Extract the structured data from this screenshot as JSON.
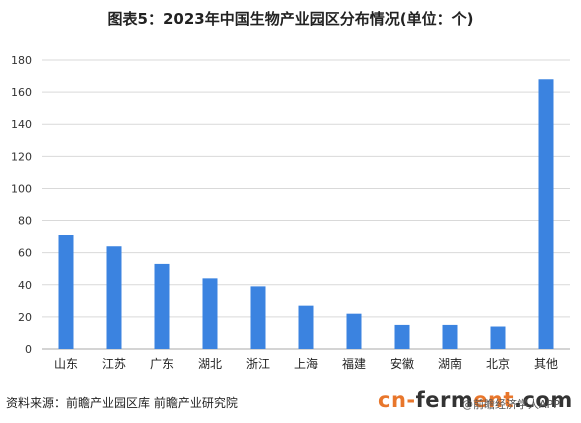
{
  "title": "图表5：2023年中国生物产业园区分布情况(单位：个)",
  "source": "资料来源：前瞻产业园区库 前瞻产业研究院",
  "watermark": {
    "logo_part1": "cn-",
    "logo_part2": "ferm",
    "logo_part3": "ent",
    "logo_part4": ".com",
    "tail_text": "@前瞻经济学人APP"
  },
  "colors": {
    "bar": "#3b83e0",
    "grid": "#d9d9d9",
    "axis": "#aaaaaa"
  },
  "chart_data": {
    "type": "bar",
    "categories": [
      "山东",
      "江苏",
      "广东",
      "湖北",
      "浙江",
      "上海",
      "福建",
      "安徽",
      "湖南",
      "北京",
      "其他"
    ],
    "values": [
      71,
      64,
      53,
      44,
      39,
      27,
      22,
      15,
      15,
      14,
      168
    ],
    "ylim": [
      0,
      180
    ],
    "yticks": [
      0,
      20,
      40,
      60,
      80,
      100,
      120,
      140,
      160,
      180
    ],
    "grid": true,
    "legend": "none"
  }
}
